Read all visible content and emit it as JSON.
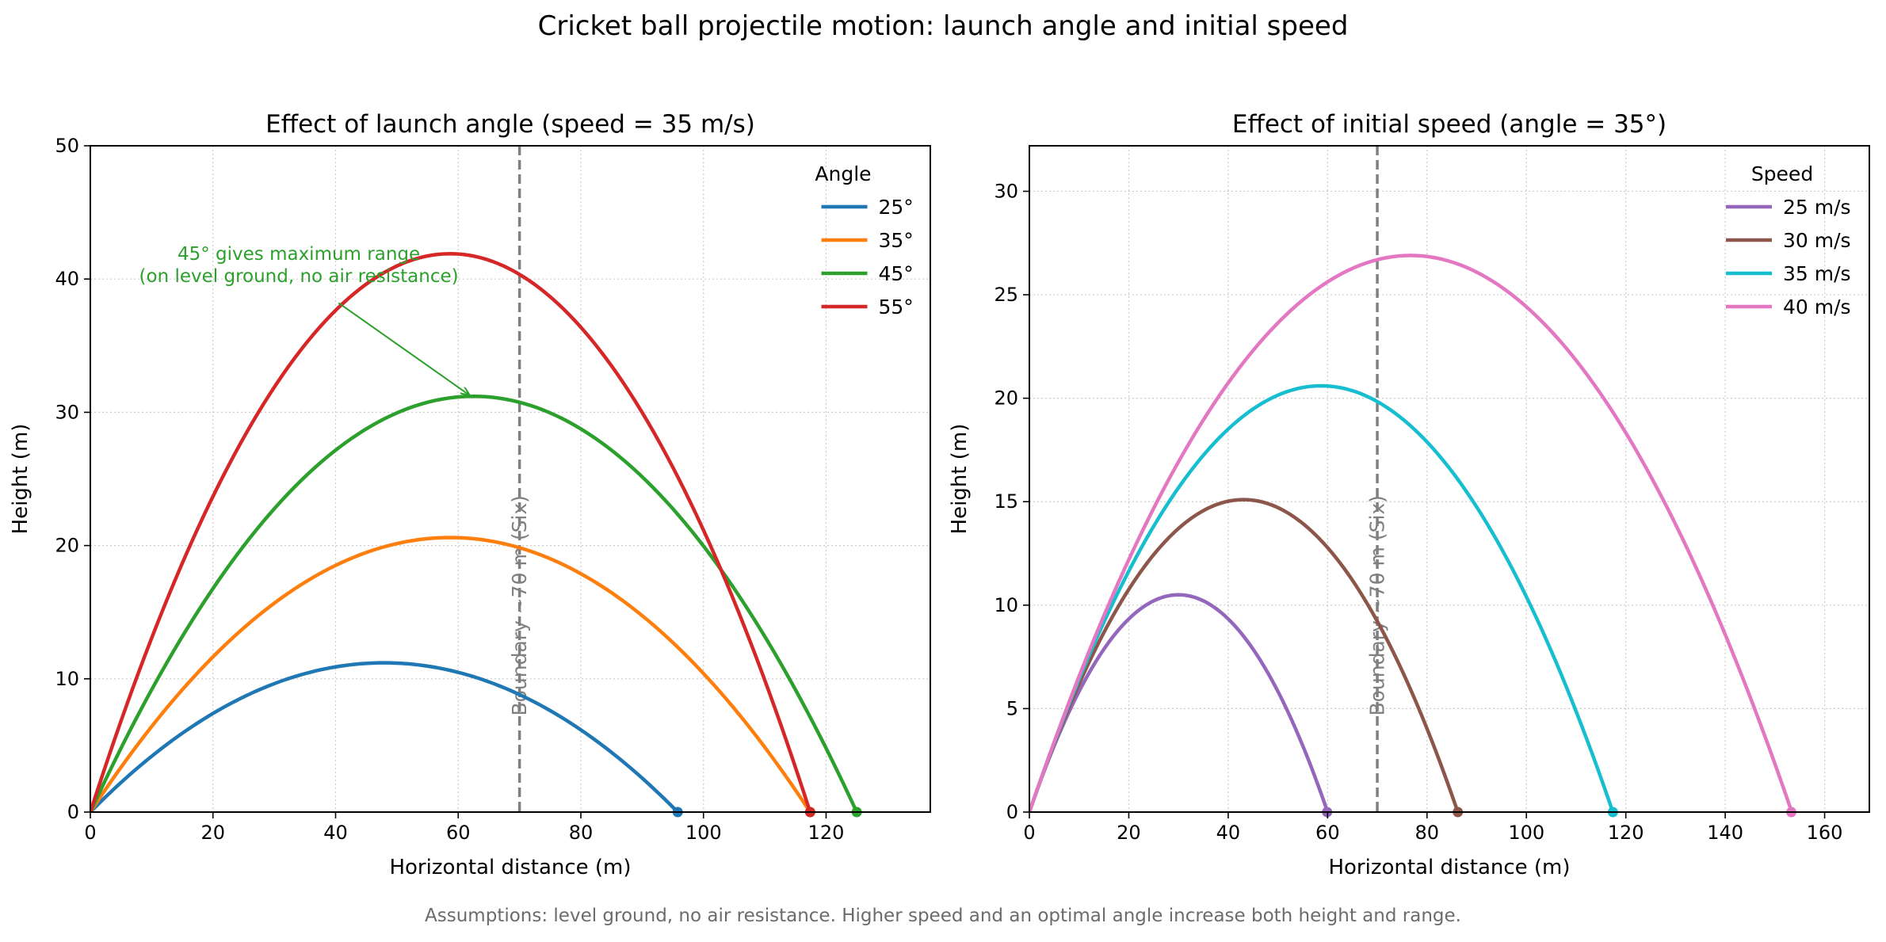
{
  "figure": {
    "suptitle": "Cricket ball projectile motion: launch angle and initial speed",
    "footnote": "Assumptions: level ground, no air resistance. Higher speed and an optimal angle increase both height and range."
  },
  "chart_data": [
    {
      "type": "line",
      "title": "Effect of launch angle (speed = 35 m/s)",
      "xlabel": "Horizontal distance (m)",
      "ylabel": "Height (m)",
      "xlim": [
        0,
        137
      ],
      "ylim": [
        0,
        50
      ],
      "xticks": [
        0,
        20,
        40,
        60,
        80,
        100,
        120
      ],
      "yticks": [
        0,
        10,
        20,
        30,
        40,
        50
      ],
      "grid": true,
      "legend": {
        "title": "Angle",
        "placement": "top-right"
      },
      "series": [
        {
          "name": "25°",
          "apex_x": 47.9,
          "apex_y": 11.2,
          "range": 95.8,
          "color": "#1f77b4"
        },
        {
          "name": "35°",
          "apex_x": 58.7,
          "apex_y": 20.6,
          "range": 117.4,
          "color": "#ff7f0e"
        },
        {
          "name": "45°",
          "apex_x": 62.5,
          "apex_y": 31.2,
          "range": 125.0,
          "color": "#2ca02c"
        },
        {
          "name": "55°",
          "apex_x": 58.7,
          "apex_y": 41.9,
          "range": 117.4,
          "color": "#d62728"
        }
      ],
      "boundary": {
        "x": 70,
        "label": "Boundary ~70 m (Six)",
        "color": "#808080"
      },
      "annotation": {
        "lines": [
          "45° gives maximum range",
          "(on level ground, no air resistance)"
        ],
        "text_x": 34,
        "text_y": 40.5,
        "arrow_from": [
          40.5,
          38.2
        ],
        "arrow_to": [
          61.8,
          31.3
        ],
        "color": "#2ca02c"
      }
    },
    {
      "type": "line",
      "title": "Effect of initial speed (angle = 35°)",
      "xlabel": "Horizontal distance (m)",
      "ylabel": "Height (m)",
      "xlim": [
        0,
        169
      ],
      "ylim": [
        0,
        32.2
      ],
      "xticks": [
        0,
        20,
        40,
        60,
        80,
        100,
        120,
        140,
        160
      ],
      "yticks": [
        0,
        5,
        10,
        15,
        20,
        25,
        30
      ],
      "grid": true,
      "legend": {
        "title": "Speed",
        "placement": "top-right"
      },
      "series": [
        {
          "name": "25 m/s",
          "apex_x": 30.0,
          "apex_y": 10.5,
          "range": 59.9,
          "color": "#9467bd"
        },
        {
          "name": "30 m/s",
          "apex_x": 43.1,
          "apex_y": 15.1,
          "range": 86.2,
          "color": "#8c564b"
        },
        {
          "name": "35 m/s",
          "apex_x": 58.7,
          "apex_y": 20.6,
          "range": 117.4,
          "color": "#17becf"
        },
        {
          "name": "40 m/s",
          "apex_x": 76.7,
          "apex_y": 26.9,
          "range": 153.3,
          "color": "#e377c2"
        }
      ],
      "boundary": {
        "x": 70,
        "label": "Boundary ~70 m (Six)",
        "color": "#808080"
      }
    }
  ]
}
